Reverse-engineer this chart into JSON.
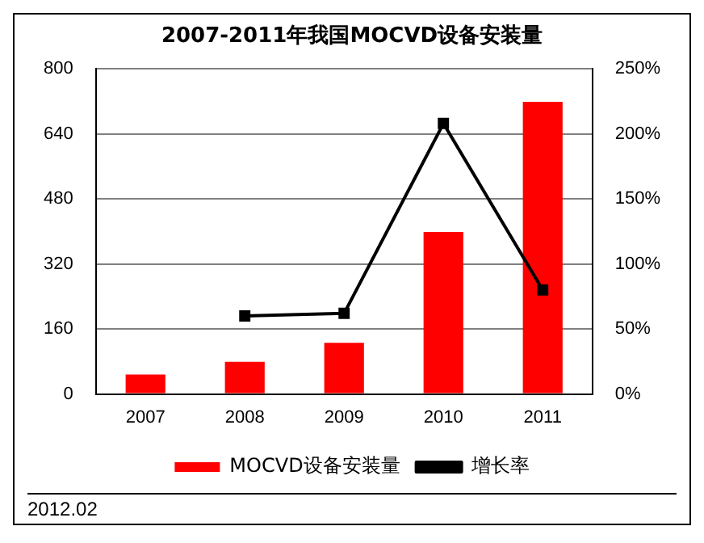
{
  "chart_data": {
    "type": "bar",
    "title": "2007-2011年我国MOCVD设备安装量",
    "categories": [
      "2007",
      "2008",
      "2009",
      "2010",
      "2011"
    ],
    "series": [
      {
        "name": "MOCVD设备安装量",
        "color": "#ff0000",
        "values": [
          48,
          79,
          126,
          399,
          719
        ]
      },
      {
        "name": "增长率",
        "type": "line",
        "axis": "y2",
        "color": "#000000",
        "values": [
          null,
          60,
          62,
          208,
          80
        ],
        "marker": "square",
        "line_style": "solid"
      }
    ],
    "ylim": [
      0,
      800
    ],
    "yticks": [
      0,
      160,
      320,
      480,
      640,
      800
    ],
    "y2lim": [
      0,
      250
    ],
    "y2ticks": [
      {
        "value": 0,
        "label": "0%"
      },
      {
        "value": 50,
        "label": "50%"
      },
      {
        "value": 100,
        "label": "100%"
      },
      {
        "value": 150,
        "label": "150%"
      },
      {
        "value": 200,
        "label": "200%"
      },
      {
        "value": 250,
        "label": "250%"
      }
    ],
    "grid": "y",
    "legend": "bottom",
    "annotations": [
      "2012.02"
    ]
  }
}
